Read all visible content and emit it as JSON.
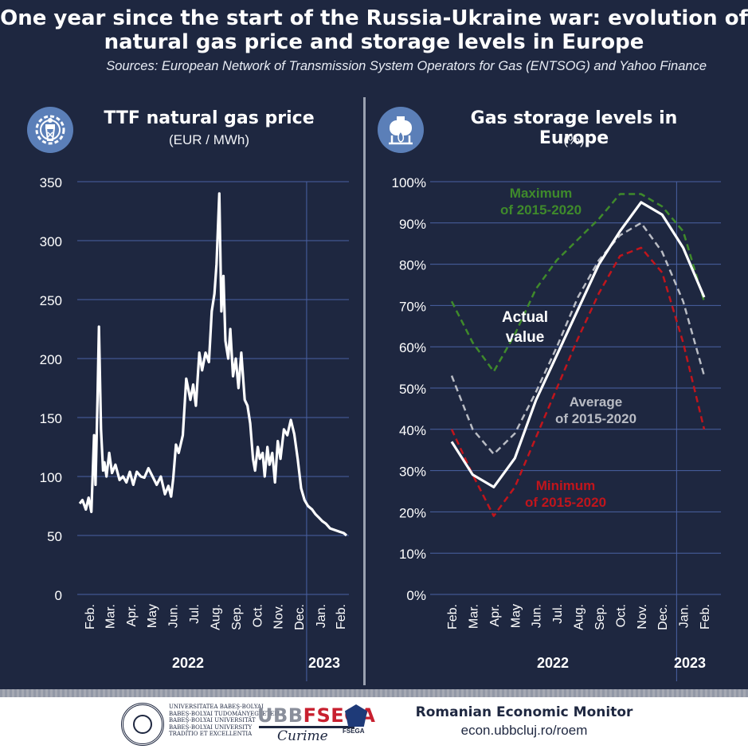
{
  "header": {
    "title_line1": "One year since the start of the Russia-Ukraine war: evolution of",
    "title_line2": "natural gas price and storage levels in Europe",
    "sources": "Sources: European Network of Transmission System Operators for Gas (ENTSOG) and Yahoo Finance"
  },
  "left_panel": {
    "title": "TTF natural gas price",
    "unit": "(EUR / MWh)",
    "icon": "gas-plant-gear-icon"
  },
  "right_panel": {
    "title": "Gas storage levels in Europe",
    "unit": "(%)",
    "icon": "gas-tank-flame-icon"
  },
  "colors": {
    "background": "#1e2740",
    "grid": "#4a62a3",
    "actual": "#ffffff",
    "maximum": "#3f8a2b",
    "average": "#b9bcc4",
    "minimum": "#c0151c"
  },
  "footer": {
    "university_lines": [
      "UNIVERSITATEA BABEŞ-BOLYAI",
      "BABEŞ-BOLYAI TUDOMÁNYEGYETEM",
      "BABEŞ-BOLYAI UNIVERSITÄT",
      "BABEŞ-BOLYAI UNIVERSITY",
      "TRADITIO ET EXCELLENTIA"
    ],
    "ubb": "UBB",
    "fsega": "FSEGA",
    "fsega_badge": "FSEGA",
    "signature": "Curime",
    "roem_title": "Romanian Economic Monitor",
    "roem_url": "econ.ubbcluj.ro/roem"
  },
  "chart_data": [
    {
      "type": "line",
      "title": "TTF natural gas price",
      "ylabel": "(EUR / MWh)",
      "ylim": [
        0,
        350
      ],
      "y_ticks": [
        0,
        50,
        100,
        150,
        200,
        250,
        300,
        350
      ],
      "x_tick_labels": [
        "Feb.",
        "Mar.",
        "Apr.",
        "May",
        "Jun.",
        "Jul.",
        "Aug.",
        "Sep.",
        "Oct.",
        "Nov.",
        "Dec.",
        "Jan.",
        "Feb."
      ],
      "year_labels": [
        "2022",
        "2023"
      ],
      "grid": true,
      "series": [
        {
          "x": [
            "2022-02-01",
            "2022-02-05",
            "2022-02-10",
            "2022-02-14",
            "2022-02-18",
            "2022-02-22",
            "2022-02-24",
            "2022-02-27",
            "2022-03-01",
            "2022-03-04",
            "2022-03-07",
            "2022-03-09",
            "2022-03-12",
            "2022-03-16",
            "2022-03-20",
            "2022-03-25",
            "2022-03-31",
            "2022-04-05",
            "2022-04-10",
            "2022-04-15",
            "2022-04-20",
            "2022-04-25",
            "2022-05-01",
            "2022-05-06",
            "2022-05-12",
            "2022-05-18",
            "2022-05-24",
            "2022-05-30",
            "2022-06-05",
            "2022-06-10",
            "2022-06-14",
            "2022-06-17",
            "2022-06-21",
            "2022-06-25",
            "2022-07-01",
            "2022-07-06",
            "2022-07-12",
            "2022-07-16",
            "2022-07-20",
            "2022-07-25",
            "2022-07-29",
            "2022-08-03",
            "2022-08-08",
            "2022-08-12",
            "2022-08-16",
            "2022-08-19",
            "2022-08-23",
            "2022-08-26",
            "2022-08-29",
            "2022-09-01",
            "2022-09-05",
            "2022-09-08",
            "2022-09-12",
            "2022-09-16",
            "2022-09-20",
            "2022-09-24",
            "2022-09-29",
            "2022-10-03",
            "2022-10-07",
            "2022-10-11",
            "2022-10-14",
            "2022-10-18",
            "2022-10-21",
            "2022-10-25",
            "2022-10-28",
            "2022-11-01",
            "2022-11-04",
            "2022-11-08",
            "2022-11-12",
            "2022-11-16",
            "2022-11-20",
            "2022-11-25",
            "2022-11-30",
            "2022-12-05",
            "2022-12-10",
            "2022-12-15",
            "2022-12-20",
            "2022-12-25",
            "2022-12-30",
            "2023-01-05",
            "2023-01-10",
            "2023-01-15",
            "2023-01-20",
            "2023-01-25",
            "2023-01-31",
            "2023-02-05",
            "2023-02-10",
            "2023-02-15",
            "2023-02-20",
            "2023-02-24"
          ],
          "y": [
            77,
            80,
            72,
            82,
            70,
            135,
            93,
            165,
            227,
            140,
            105,
            112,
            100,
            120,
            103,
            110,
            97,
            100,
            95,
            104,
            93,
            104,
            100,
            99,
            107,
            100,
            93,
            100,
            85,
            92,
            83,
            98,
            127,
            120,
            135,
            183,
            165,
            178,
            160,
            205,
            190,
            205,
            197,
            240,
            255,
            280,
            340,
            240,
            270,
            215,
            200,
            225,
            185,
            200,
            175,
            205,
            165,
            160,
            145,
            115,
            105,
            125,
            115,
            120,
            100,
            125,
            110,
            120,
            95,
            130,
            115,
            140,
            135,
            148,
            136,
            115,
            90,
            80,
            75,
            72,
            68,
            65,
            62,
            60,
            56,
            55,
            54,
            53,
            52,
            50
          ]
        }
      ]
    },
    {
      "type": "line",
      "title": "Gas storage levels in Europe",
      "ylabel": "(%)",
      "ylim": [
        0,
        100
      ],
      "y_ticks": [
        0,
        10,
        20,
        30,
        40,
        50,
        60,
        70,
        80,
        90,
        100
      ],
      "x": [
        "Feb.",
        "Mar.",
        "Apr.",
        "May",
        "Jun.",
        "Jul.",
        "Aug.",
        "Sep.",
        "Oct.",
        "Nov.",
        "Dec.",
        "Jan.",
        "Feb."
      ],
      "year_labels": [
        "2022",
        "2023"
      ],
      "grid": true,
      "series": [
        {
          "name": "Actual value",
          "values": [
            37,
            29,
            26,
            33,
            47,
            58,
            69,
            80,
            88,
            95,
            92,
            84,
            72
          ]
        },
        {
          "name": "Maximum of 2015-2020",
          "values": [
            71,
            61,
            54,
            63,
            74,
            81,
            86,
            91,
            97,
            97,
            94,
            88,
            71
          ]
        },
        {
          "name": "Average of 2015-2020",
          "values": [
            53,
            40,
            34,
            39,
            49,
            60,
            72,
            81,
            87,
            90,
            83,
            71,
            53
          ]
        },
        {
          "name": "Minimum of 2015-2020",
          "values": [
            40,
            29,
            19,
            26,
            38,
            50,
            62,
            73,
            82,
            84,
            78,
            61,
            40
          ]
        }
      ],
      "annotations": [
        {
          "series": "Actual value",
          "line1": "Actual",
          "line2": "value"
        },
        {
          "series": "Maximum of 2015-2020",
          "line1": "Maximum",
          "line2": "of 2015-2020"
        },
        {
          "series": "Average of 2015-2020",
          "line1": "Average",
          "line2": "of 2015-2020"
        },
        {
          "series": "Minimum of 2015-2020",
          "line1": "Minimum",
          "line2": "of 2015-2020"
        }
      ]
    }
  ]
}
